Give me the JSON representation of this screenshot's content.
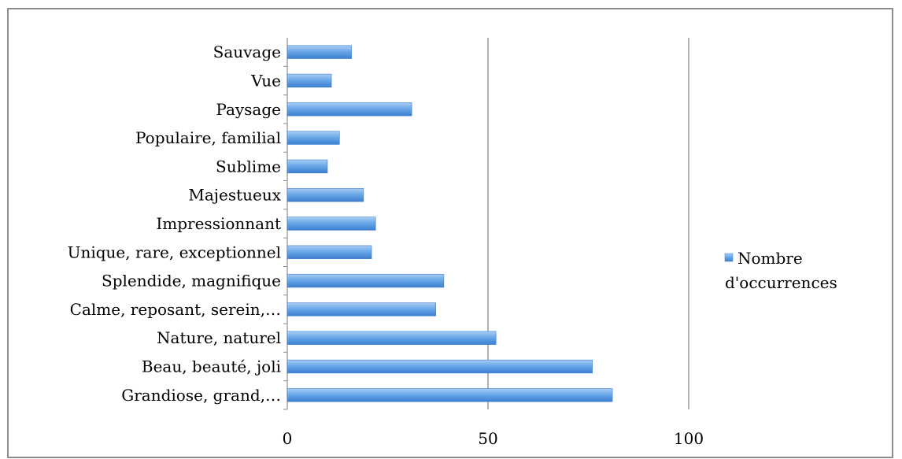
{
  "chart_data": {
    "type": "bar",
    "orientation": "horizontal",
    "categories": [
      "Grandiose, grand,…",
      "Beau, beauté, joli",
      "Nature, naturel",
      "Calme, reposant, serein,…",
      "Splendide, magnifique",
      "Unique, rare, exceptionnel",
      "Impressionnant",
      "Majestueux",
      "Sublime",
      "Populaire, familial",
      "Paysage",
      "Vue",
      "Sauvage"
    ],
    "series": [
      {
        "name": "Nombre d'occurrences",
        "values": [
          81,
          76,
          52,
          37,
          39,
          21,
          22,
          19,
          10,
          13,
          31,
          11,
          16
        ],
        "color": "#5b9bd5"
      }
    ],
    "title": "",
    "xlabel": "",
    "ylabel": "",
    "xlim": [
      0,
      100
    ],
    "xticks": [
      0,
      50,
      100
    ],
    "grid": "vertical",
    "legend_position": "right"
  },
  "legend": {
    "line1": "Nombre",
    "line2": "d'occurrences"
  }
}
